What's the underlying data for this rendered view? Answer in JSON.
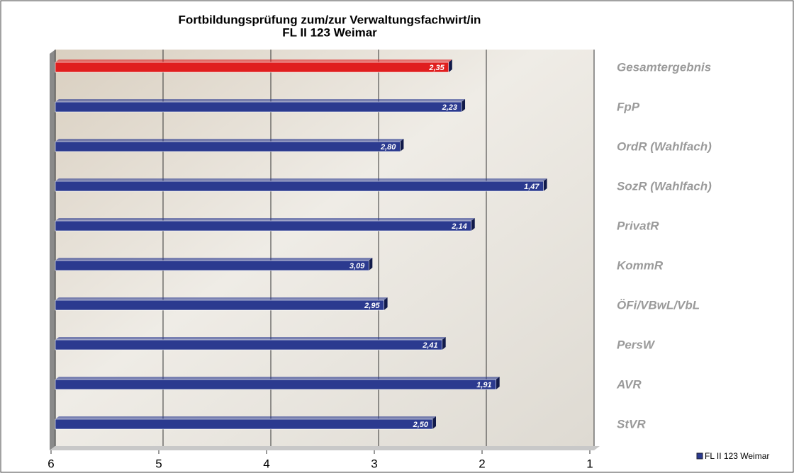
{
  "chart_data": {
    "type": "bar",
    "orientation": "horizontal",
    "title": "Fortbildungsprüfung zum/zur Verwaltungsfachwirt/in",
    "subtitle": "FL II 123 Weimar",
    "categories": [
      "Gesamtergebnis",
      "FpP",
      "OrdR (Wahlfach)",
      "SozR (Wahlfach)",
      "PrivatR",
      "KommR",
      "ÖFi/VBwL/VbL",
      "PersW",
      "AVR",
      "StVR"
    ],
    "series": [
      {
        "name": "FL II 123 Weimar",
        "color": "#2b3a8f",
        "colors": [
          "#e01e1e",
          "#2b3a8f",
          "#2b3a8f",
          "#2b3a8f",
          "#2b3a8f",
          "#2b3a8f",
          "#2b3a8f",
          "#2b3a8f",
          "#2b3a8f",
          "#2b3a8f"
        ],
        "values": [
          2.35,
          2.23,
          2.8,
          1.47,
          2.14,
          3.09,
          2.95,
          2.41,
          1.91,
          2.5
        ],
        "value_labels": [
          "2,35",
          "2,23",
          "2,80",
          "1,47",
          "2,14",
          "3,09",
          "2,95",
          "2,41",
          "1,91",
          "2,50"
        ]
      }
    ],
    "xlim": [
      6,
      1
    ],
    "xticks": [
      6,
      5,
      4,
      3,
      2,
      1
    ],
    "grid": true,
    "legend": "bottom-right"
  }
}
